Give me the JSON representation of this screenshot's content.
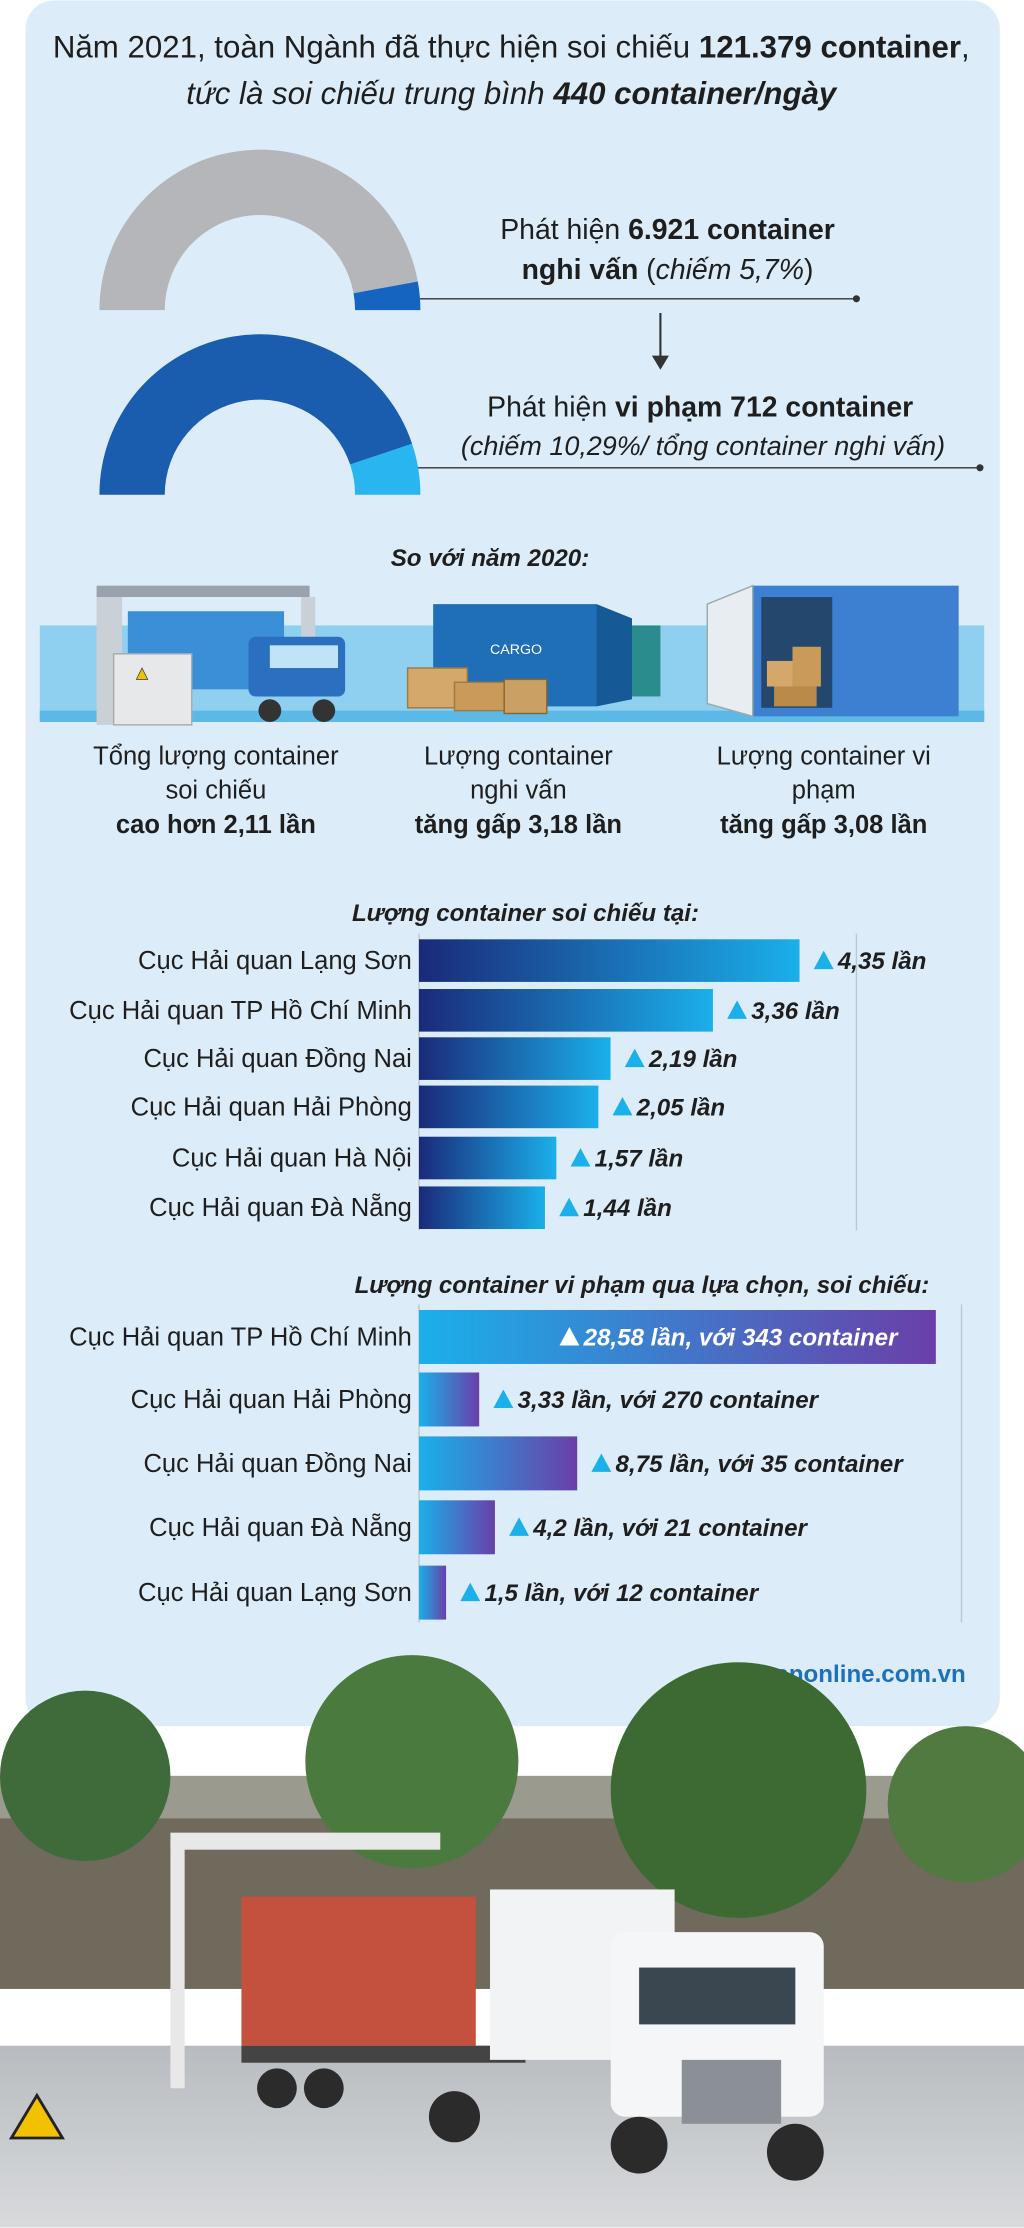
{
  "header": {
    "line1": "Năm 2021, toàn Ngành đã thực hiện soi chiếu ",
    "line1_bold": "121.379 container",
    "line1_end": ",",
    "line2": "tức là soi chiếu trung bình ",
    "line2_bold": "440 container/ngày"
  },
  "gauges": [
    {
      "value": 5.7,
      "text1": "Phát hiện ",
      "bold1": "6.921 container",
      "bold2": "nghi vấn",
      "text2": " (",
      "italic": "chiếm 5,7%",
      "text3": ")",
      "color": "#1565c0",
      "rest_color": "#b4b6b9"
    },
    {
      "value": 10.29,
      "text1": "Phát hiện ",
      "bold1": "vi phạm 712 container",
      "italic": "(chiếm 10,29%/ tổng container nghi vấn)",
      "color": "#29b6f0",
      "rest_color": "#1a5cae"
    }
  ],
  "comparison": {
    "title": "So với năm 2020:",
    "icon_text": "CARGO",
    "items": [
      {
        "line1": "Tổng lượng container",
        "line2": "soi chiếu",
        "bold": "cao hơn 2,11 lần"
      },
      {
        "line1": "Lượng container",
        "line2": "nghi vấn",
        "bold": "tăng gấp 3,18 lần"
      },
      {
        "line1": "Lượng container vi",
        "line2": "phạm",
        "bold": "tăng gấp 3,08 lần"
      }
    ]
  },
  "chart_data": [
    {
      "type": "bar",
      "orientation": "horizontal",
      "title": "Lượng container soi chiếu tại:",
      "categories": [
        "Cục Hải quan Lạng Sơn",
        "Cục Hải quan TP Hồ Chí Minh",
        "Cục Hải quan Đồng Nai",
        "Cục Hải quan Hải Phòng",
        "Cục Hải quan Hà Nội",
        "Cục Hải quan Đà Nẵng"
      ],
      "values": [
        4.35,
        3.36,
        2.19,
        2.05,
        1.57,
        1.44
      ],
      "value_labels": [
        "4,35 lần",
        "3,36 lần",
        "2,19 lần",
        "2,05 lần",
        "1,57 lần",
        "1,44 lần"
      ],
      "xlim": [
        0,
        5
      ],
      "colors": [
        "#1a2a7a",
        "#1ab0ea"
      ]
    },
    {
      "type": "bar",
      "orientation": "horizontal",
      "title": "Lượng container vi phạm qua lựa chọn, soi chiếu:",
      "categories": [
        "Cục Hải quan TP Hồ Chí Minh",
        "Cục Hải quan Hải Phòng",
        "Cục Hải quan Đồng Nai",
        "Cục Hải quan Đà Nẵng",
        "Cục Hải quan Lạng Sơn"
      ],
      "values": [
        28.58,
        3.33,
        8.75,
        4.2,
        1.5
      ],
      "value_labels": [
        "28,58 lần, với 343 container",
        "3,33 lần, với 270 container",
        "8,75 lần, với 35 container",
        "4,2 lần, với 21 container",
        "1,5 lần, với 12 container"
      ],
      "xlim": [
        0,
        30
      ],
      "colors": [
        "#1ab0ea",
        "#6a3fa8"
      ]
    }
  ],
  "source": "haiquanonline.com.vn"
}
